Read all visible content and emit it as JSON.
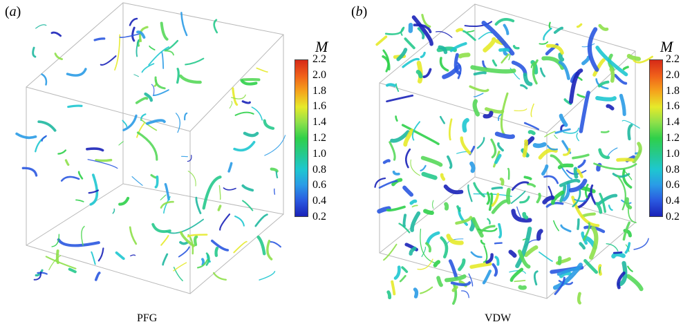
{
  "panels": [
    {
      "label": "a",
      "caption": "PFG"
    },
    {
      "label": "b",
      "caption": "VDW"
    }
  ],
  "colorbar": {
    "title": "M",
    "ticks": [
      "2.2",
      "2.0",
      "1.8",
      "1.6",
      "1.4",
      "1.2",
      "1.0",
      "0.8",
      "0.6",
      "0.4",
      "0.2"
    ],
    "colors": [
      "#d62a18",
      "#f0601a",
      "#f5a41c",
      "#e6ea2a",
      "#8ee04a",
      "#2fd04a",
      "#26c98c",
      "#1ec7d0",
      "#2a9be6",
      "#2a58e0",
      "#1a22b8"
    ]
  }
}
